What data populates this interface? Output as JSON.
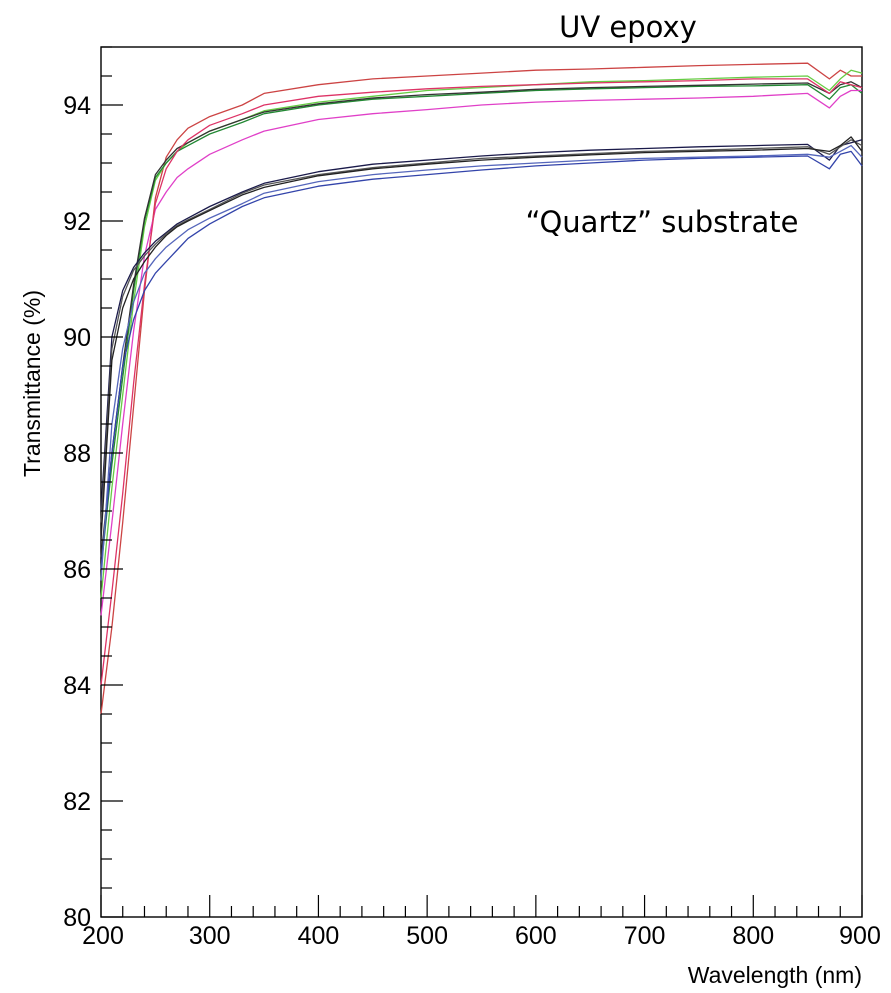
{
  "chart_data": {
    "type": "line",
    "title": "",
    "xlabel": "Wavelength (nm)",
    "ylabel": "Transmittance (%)",
    "xlim": [
      200,
      900
    ],
    "ylim": [
      80,
      95
    ],
    "x_ticks": [
      "200",
      "300",
      "400",
      "500",
      "600",
      "700",
      "800",
      "900"
    ],
    "y_ticks": [
      "80",
      "82",
      "84",
      "86",
      "88",
      "90",
      "92",
      "94"
    ],
    "grid": false,
    "annotations": [
      {
        "text": "UV epoxy"
      },
      {
        "text": "“Quartz” substrate"
      }
    ],
    "x": [
      200,
      210,
      220,
      230,
      240,
      250,
      260,
      270,
      280,
      300,
      330,
      350,
      400,
      450,
      500,
      550,
      600,
      650,
      700,
      750,
      800,
      850,
      870,
      880,
      890,
      900
    ],
    "series": [
      {
        "color": "#cc4444",
        "values": [
          83.5,
          85.0,
          86.8,
          88.8,
          90.8,
          92.4,
          93.1,
          93.4,
          93.6,
          93.8,
          94.0,
          94.2,
          94.35,
          94.45,
          94.5,
          94.55,
          94.6,
          94.62,
          94.65,
          94.68,
          94.7,
          94.72,
          94.45,
          94.6,
          94.5,
          94.5
        ]
      },
      {
        "color": "#66cc44",
        "values": [
          85.5,
          87.4,
          89.0,
          90.6,
          91.9,
          92.7,
          93.0,
          93.2,
          93.35,
          93.55,
          93.75,
          93.9,
          94.05,
          94.15,
          94.25,
          94.3,
          94.35,
          94.4,
          94.42,
          94.45,
          94.48,
          94.5,
          94.25,
          94.45,
          94.6,
          94.55
        ]
      },
      {
        "color": "#228833",
        "values": [
          86.0,
          87.8,
          89.3,
          90.8,
          92.0,
          92.75,
          93.0,
          93.2,
          93.3,
          93.5,
          93.7,
          93.85,
          94.0,
          94.1,
          94.15,
          94.2,
          94.25,
          94.28,
          94.3,
          94.32,
          94.33,
          94.35,
          94.1,
          94.3,
          94.35,
          94.2
        ]
      },
      {
        "color": "#333333",
        "values": [
          86.2,
          88.0,
          89.5,
          90.9,
          92.05,
          92.8,
          93.05,
          93.25,
          93.35,
          93.55,
          93.75,
          93.88,
          94.02,
          94.12,
          94.18,
          94.22,
          94.27,
          94.3,
          94.32,
          94.34,
          94.36,
          94.38,
          94.2,
          94.35,
          94.4,
          94.3
        ]
      },
      {
        "color": "#e040c8",
        "values": [
          85.2,
          86.8,
          88.5,
          90.1,
          91.4,
          92.2,
          92.5,
          92.75,
          92.9,
          93.15,
          93.4,
          93.55,
          93.75,
          93.85,
          93.92,
          94.0,
          94.05,
          94.08,
          94.1,
          94.12,
          94.15,
          94.2,
          93.95,
          94.15,
          94.25,
          94.25
        ]
      },
      {
        "color": "#dd3366",
        "values": [
          84.0,
          85.6,
          87.3,
          89.2,
          90.9,
          92.3,
          92.9,
          93.2,
          93.4,
          93.65,
          93.85,
          94.0,
          94.15,
          94.22,
          94.28,
          94.32,
          94.35,
          94.38,
          94.4,
          94.42,
          94.45,
          94.45,
          94.2,
          94.4,
          94.35,
          94.3
        ]
      },
      {
        "color": "#1a1a4a",
        "values": [
          87.0,
          90.0,
          90.8,
          91.2,
          91.45,
          91.65,
          91.8,
          91.95,
          92.05,
          92.25,
          92.5,
          92.65,
          92.85,
          92.98,
          93.05,
          93.12,
          93.18,
          93.22,
          93.25,
          93.28,
          93.3,
          93.32,
          93.05,
          93.3,
          93.35,
          93.4
        ]
      },
      {
        "color": "#555555",
        "values": [
          86.8,
          89.8,
          90.7,
          91.15,
          91.4,
          91.6,
          91.78,
          91.92,
          92.02,
          92.2,
          92.48,
          92.62,
          92.8,
          92.92,
          93.0,
          93.08,
          93.12,
          93.16,
          93.2,
          93.22,
          93.25,
          93.28,
          93.15,
          93.28,
          93.4,
          93.3
        ]
      },
      {
        "color": "#222222",
        "values": [
          86.5,
          89.6,
          90.5,
          91.0,
          91.3,
          91.55,
          91.75,
          91.9,
          92.0,
          92.18,
          92.45,
          92.58,
          92.78,
          92.9,
          92.98,
          93.05,
          93.1,
          93.14,
          93.18,
          93.2,
          93.22,
          93.25,
          93.2,
          93.3,
          93.45,
          93.2
        ]
      },
      {
        "color": "#3344aa",
        "values": [
          86.0,
          88.0,
          89.5,
          90.3,
          90.8,
          91.1,
          91.3,
          91.5,
          91.7,
          91.95,
          92.25,
          92.4,
          92.6,
          92.72,
          92.8,
          92.88,
          92.95,
          93.0,
          93.05,
          93.08,
          93.1,
          93.12,
          92.9,
          93.15,
          93.2,
          92.95
        ]
      },
      {
        "color": "#5566bb",
        "values": [
          85.8,
          88.5,
          89.8,
          90.6,
          91.1,
          91.35,
          91.55,
          91.7,
          91.85,
          92.05,
          92.3,
          92.48,
          92.68,
          92.8,
          92.88,
          92.95,
          93.0,
          93.05,
          93.08,
          93.1,
          93.12,
          93.15,
          93.1,
          93.2,
          93.3,
          93.1
        ]
      }
    ]
  }
}
